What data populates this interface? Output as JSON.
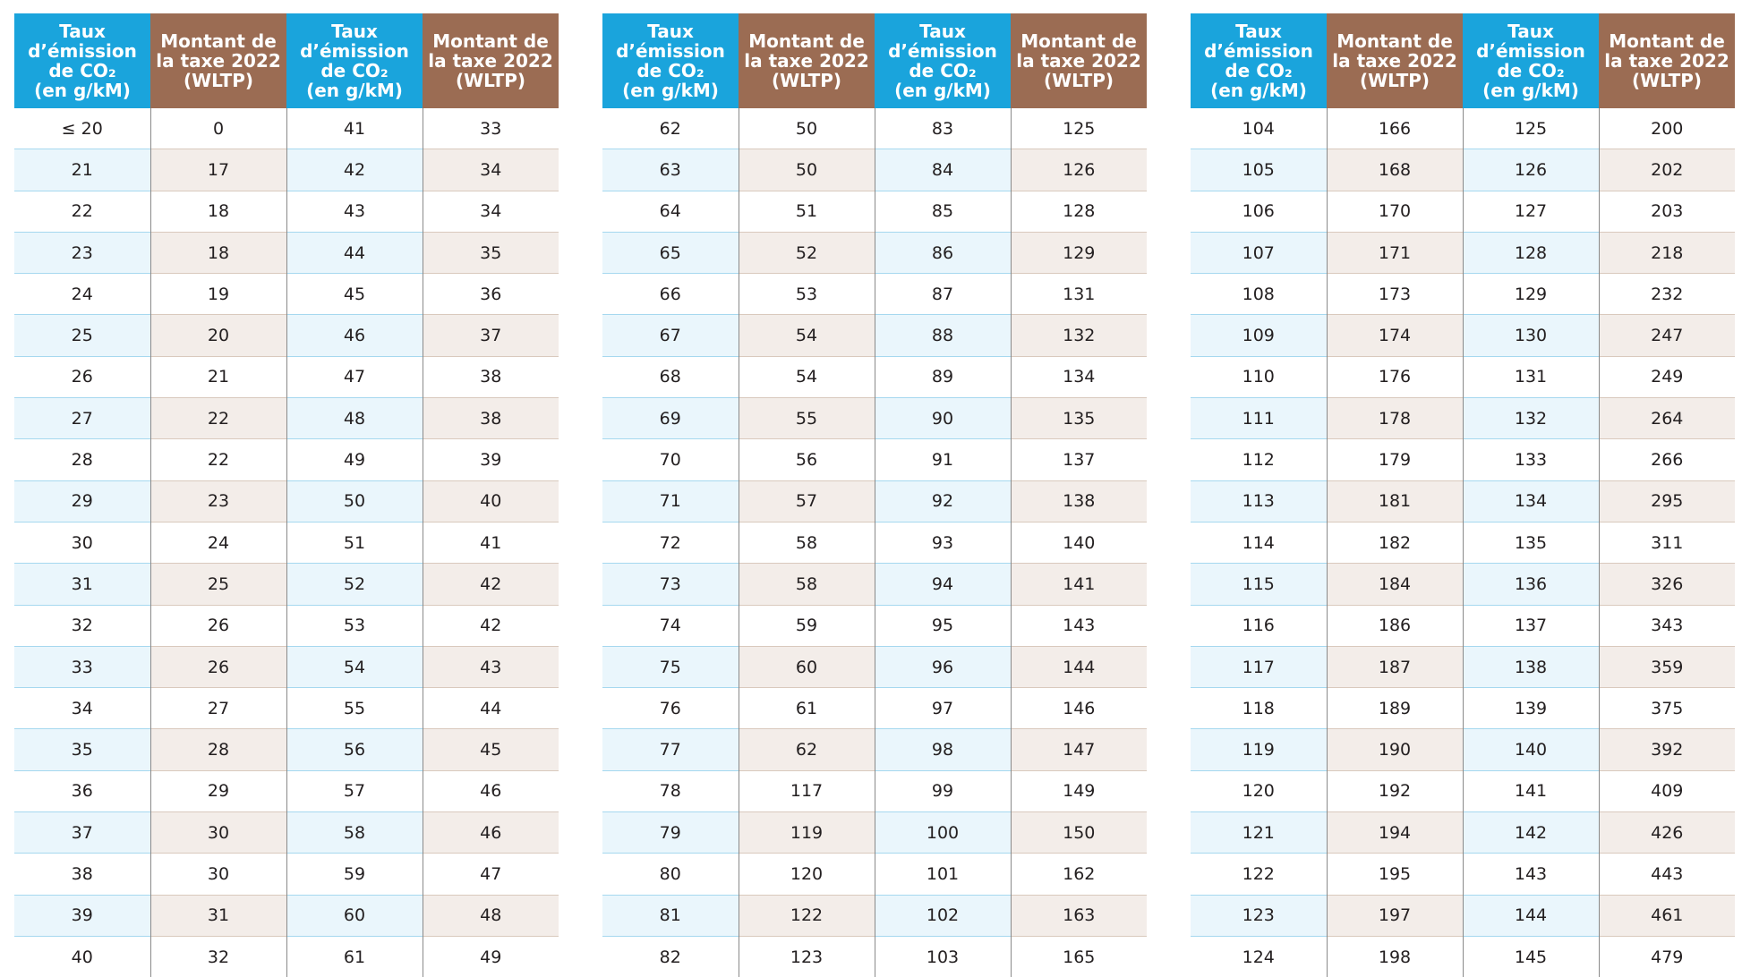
{
  "headers": {
    "co2": "Taux\nd’émission\nde CO₂\n(en g/kM)",
    "tax": "Montant de\nla taxe 2022\n(WLTP)"
  },
  "tables": [
    {
      "rows": [
        [
          "≤ 20",
          "0",
          "41",
          "33"
        ],
        [
          "21",
          "17",
          "42",
          "34"
        ],
        [
          "22",
          "18",
          "43",
          "34"
        ],
        [
          "23",
          "18",
          "44",
          "35"
        ],
        [
          "24",
          "19",
          "45",
          "36"
        ],
        [
          "25",
          "20",
          "46",
          "37"
        ],
        [
          "26",
          "21",
          "47",
          "38"
        ],
        [
          "27",
          "22",
          "48",
          "38"
        ],
        [
          "28",
          "22",
          "49",
          "39"
        ],
        [
          "29",
          "23",
          "50",
          "40"
        ],
        [
          "30",
          "24",
          "51",
          "41"
        ],
        [
          "31",
          "25",
          "52",
          "42"
        ],
        [
          "32",
          "26",
          "53",
          "42"
        ],
        [
          "33",
          "26",
          "54",
          "43"
        ],
        [
          "34",
          "27",
          "55",
          "44"
        ],
        [
          "35",
          "28",
          "56",
          "45"
        ],
        [
          "36",
          "29",
          "57",
          "46"
        ],
        [
          "37",
          "30",
          "58",
          "46"
        ],
        [
          "38",
          "30",
          "59",
          "47"
        ],
        [
          "39",
          "31",
          "60",
          "48"
        ],
        [
          "40",
          "32",
          "61",
          "49"
        ]
      ]
    },
    {
      "rows": [
        [
          "62",
          "50",
          "83",
          "125"
        ],
        [
          "63",
          "50",
          "84",
          "126"
        ],
        [
          "64",
          "51",
          "85",
          "128"
        ],
        [
          "65",
          "52",
          "86",
          "129"
        ],
        [
          "66",
          "53",
          "87",
          "131"
        ],
        [
          "67",
          "54",
          "88",
          "132"
        ],
        [
          "68",
          "54",
          "89",
          "134"
        ],
        [
          "69",
          "55",
          "90",
          "135"
        ],
        [
          "70",
          "56",
          "91",
          "137"
        ],
        [
          "71",
          "57",
          "92",
          "138"
        ],
        [
          "72",
          "58",
          "93",
          "140"
        ],
        [
          "73",
          "58",
          "94",
          "141"
        ],
        [
          "74",
          "59",
          "95",
          "143"
        ],
        [
          "75",
          "60",
          "96",
          "144"
        ],
        [
          "76",
          "61",
          "97",
          "146"
        ],
        [
          "77",
          "62",
          "98",
          "147"
        ],
        [
          "78",
          "117",
          "99",
          "149"
        ],
        [
          "79",
          "119",
          "100",
          "150"
        ],
        [
          "80",
          "120",
          "101",
          "162"
        ],
        [
          "81",
          "122",
          "102",
          "163"
        ],
        [
          "82",
          "123",
          "103",
          "165"
        ]
      ]
    },
    {
      "rows": [
        [
          "104",
          "166",
          "125",
          "200"
        ],
        [
          "105",
          "168",
          "126",
          "202"
        ],
        [
          "106",
          "170",
          "127",
          "203"
        ],
        [
          "107",
          "171",
          "128",
          "218"
        ],
        [
          "108",
          "173",
          "129",
          "232"
        ],
        [
          "109",
          "174",
          "130",
          "247"
        ],
        [
          "110",
          "176",
          "131",
          "249"
        ],
        [
          "111",
          "178",
          "132",
          "264"
        ],
        [
          "112",
          "179",
          "133",
          "266"
        ],
        [
          "113",
          "181",
          "134",
          "295"
        ],
        [
          "114",
          "182",
          "135",
          "311"
        ],
        [
          "115",
          "184",
          "136",
          "326"
        ],
        [
          "116",
          "186",
          "137",
          "343"
        ],
        [
          "117",
          "187",
          "138",
          "359"
        ],
        [
          "118",
          "189",
          "139",
          "375"
        ],
        [
          "119",
          "190",
          "140",
          "392"
        ],
        [
          "120",
          "192",
          "141",
          "409"
        ],
        [
          "121",
          "194",
          "142",
          "426"
        ],
        [
          "122",
          "195",
          "143",
          "443"
        ],
        [
          "123",
          "197",
          "144",
          "461"
        ],
        [
          "124",
          "198",
          "145",
          "479"
        ]
      ]
    }
  ]
}
